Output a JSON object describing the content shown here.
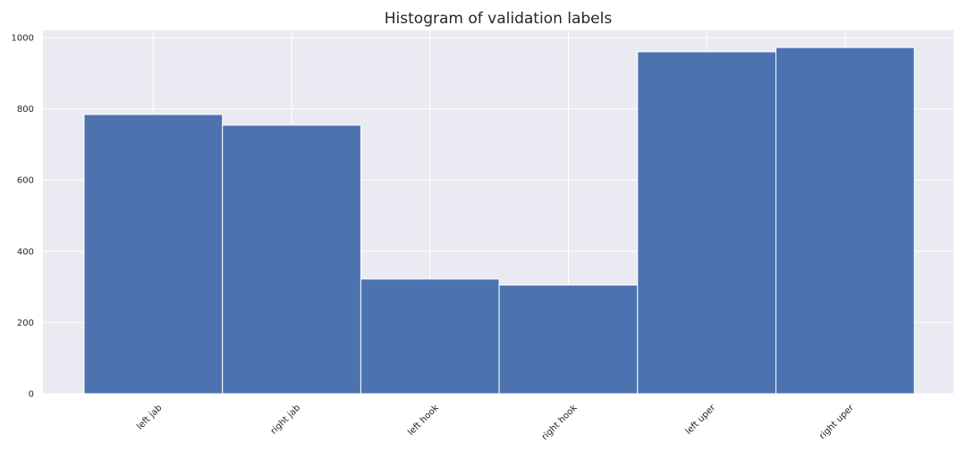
{
  "chart_data": {
    "type": "bar",
    "title": "Histogram of validation labels",
    "xlabel": "",
    "ylabel": "",
    "categories": [
      "left jab",
      "right jab",
      "left hook",
      "right hook",
      "left uper",
      "right uper"
    ],
    "values": [
      784,
      754,
      322,
      305,
      960,
      972
    ],
    "ylim": [
      0,
      1020
    ],
    "yticks": [
      0,
      200,
      400,
      600,
      800,
      1000
    ],
    "grid": true,
    "colors": {
      "bar": "#4c72b0",
      "background": "#eaeaf2",
      "grid": "#ffffff"
    }
  }
}
